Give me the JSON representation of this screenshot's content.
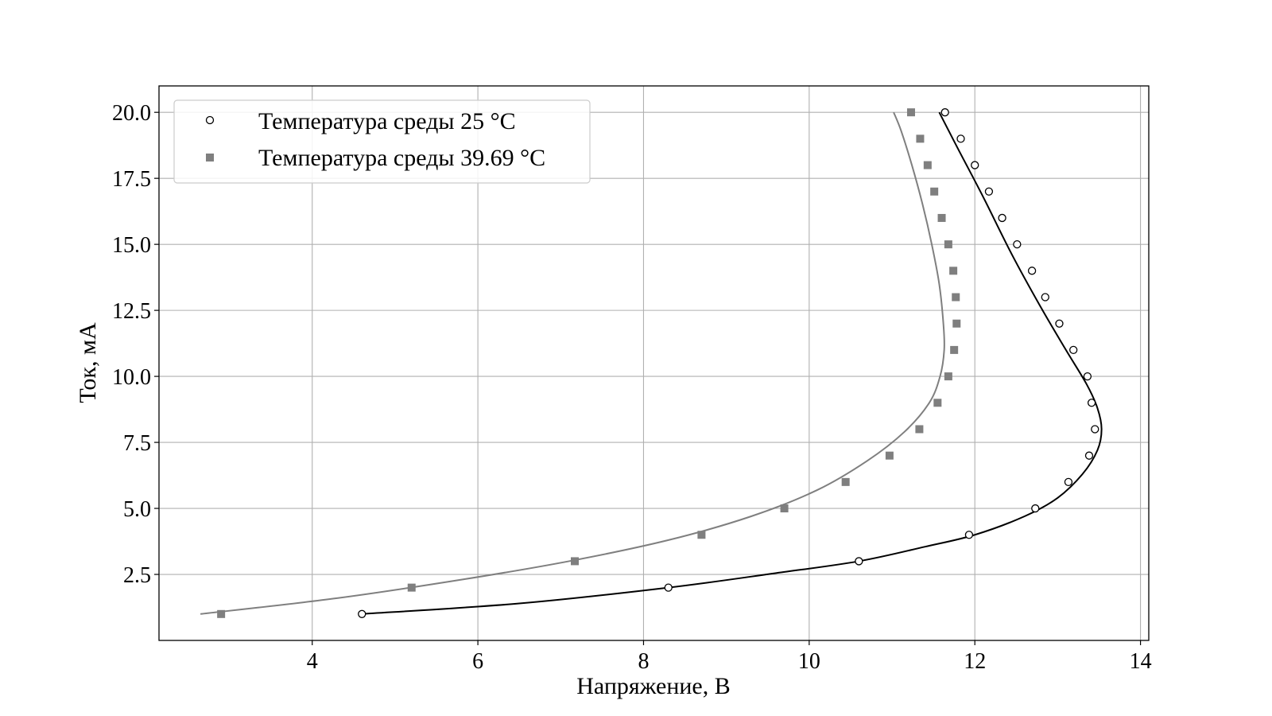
{
  "chart_data": {
    "type": "scatter",
    "xlabel": "Напряжение, В",
    "ylabel": "Ток, мА",
    "xlim": [
      2.15,
      14.1
    ],
    "ylim": [
      0.0,
      21.0
    ],
    "xticks": [
      4,
      6,
      8,
      10,
      12,
      14
    ],
    "yticks": [
      2.5,
      5.0,
      7.5,
      10.0,
      12.5,
      15.0,
      17.5,
      20.0
    ],
    "xtick_labels": [
      "4",
      "6",
      "8",
      "10",
      "12",
      "14"
    ],
    "ytick_labels": [
      "2.5",
      "5.0",
      "7.5",
      "10.0",
      "12.5",
      "15.0",
      "17.5",
      "20.0"
    ],
    "grid": true,
    "legend_position": "top-left",
    "series": [
      {
        "name": "Температура среды 25 °C",
        "marker": "circle-open",
        "color": "#000000",
        "points": [
          [
            4.6,
            1
          ],
          [
            8.3,
            2
          ],
          [
            10.6,
            3
          ],
          [
            11.93,
            4
          ],
          [
            12.73,
            5
          ],
          [
            13.13,
            6
          ],
          [
            13.38,
            7
          ],
          [
            13.45,
            8
          ],
          [
            13.41,
            9
          ],
          [
            13.36,
            10
          ],
          [
            13.19,
            11
          ],
          [
            13.02,
            12
          ],
          [
            12.85,
            13
          ],
          [
            12.69,
            14
          ],
          [
            12.51,
            15
          ],
          [
            12.33,
            16
          ],
          [
            12.17,
            17
          ],
          [
            12.0,
            18
          ],
          [
            11.83,
            19
          ],
          [
            11.64,
            20
          ]
        ]
      },
      {
        "name": "Температура среды 39.69 °C",
        "marker": "square",
        "color": "#7f7f7f",
        "points": [
          [
            2.9,
            1
          ],
          [
            5.2,
            2
          ],
          [
            7.17,
            3
          ],
          [
            8.7,
            4
          ],
          [
            9.7,
            5
          ],
          [
            10.44,
            6
          ],
          [
            10.97,
            7
          ],
          [
            11.33,
            8
          ],
          [
            11.55,
            9
          ],
          [
            11.68,
            10
          ],
          [
            11.75,
            11
          ],
          [
            11.78,
            12
          ],
          [
            11.77,
            13
          ],
          [
            11.74,
            14
          ],
          [
            11.68,
            15
          ],
          [
            11.6,
            16
          ],
          [
            11.51,
            17
          ],
          [
            11.43,
            18
          ],
          [
            11.34,
            19
          ],
          [
            11.23,
            20
          ]
        ]
      }
    ],
    "fit_lines": [
      {
        "color": "#000000",
        "points": [
          [
            4.6,
            1
          ],
          [
            6.5,
            1.4
          ],
          [
            8.3,
            2
          ],
          [
            9.6,
            2.55
          ],
          [
            10.6,
            3
          ],
          [
            11.4,
            3.55
          ],
          [
            12.0,
            4
          ],
          [
            12.6,
            4.7
          ],
          [
            13.0,
            5.4
          ],
          [
            13.3,
            6.3
          ],
          [
            13.48,
            7.2
          ],
          [
            13.53,
            8
          ],
          [
            13.48,
            8.8
          ],
          [
            13.35,
            9.7
          ],
          [
            13.1,
            11.0
          ],
          [
            12.8,
            12.6
          ],
          [
            12.45,
            14.6
          ],
          [
            12.1,
            16.8
          ],
          [
            11.8,
            18.6
          ],
          [
            11.57,
            20
          ]
        ]
      },
      {
        "color": "#7f7f7f",
        "points": [
          [
            2.65,
            1
          ],
          [
            4.3,
            1.6
          ],
          [
            5.8,
            2.3
          ],
          [
            7.1,
            3
          ],
          [
            8.3,
            3.8
          ],
          [
            9.3,
            4.7
          ],
          [
            10.1,
            5.7
          ],
          [
            10.7,
            6.8
          ],
          [
            11.15,
            7.9
          ],
          [
            11.45,
            9.0
          ],
          [
            11.58,
            10.0
          ],
          [
            11.63,
            11.0
          ],
          [
            11.62,
            12.0
          ],
          [
            11.57,
            13.5
          ],
          [
            11.48,
            15.0
          ],
          [
            11.37,
            16.5
          ],
          [
            11.24,
            18.0
          ],
          [
            11.11,
            19.3
          ],
          [
            11.02,
            20
          ]
        ]
      }
    ]
  }
}
